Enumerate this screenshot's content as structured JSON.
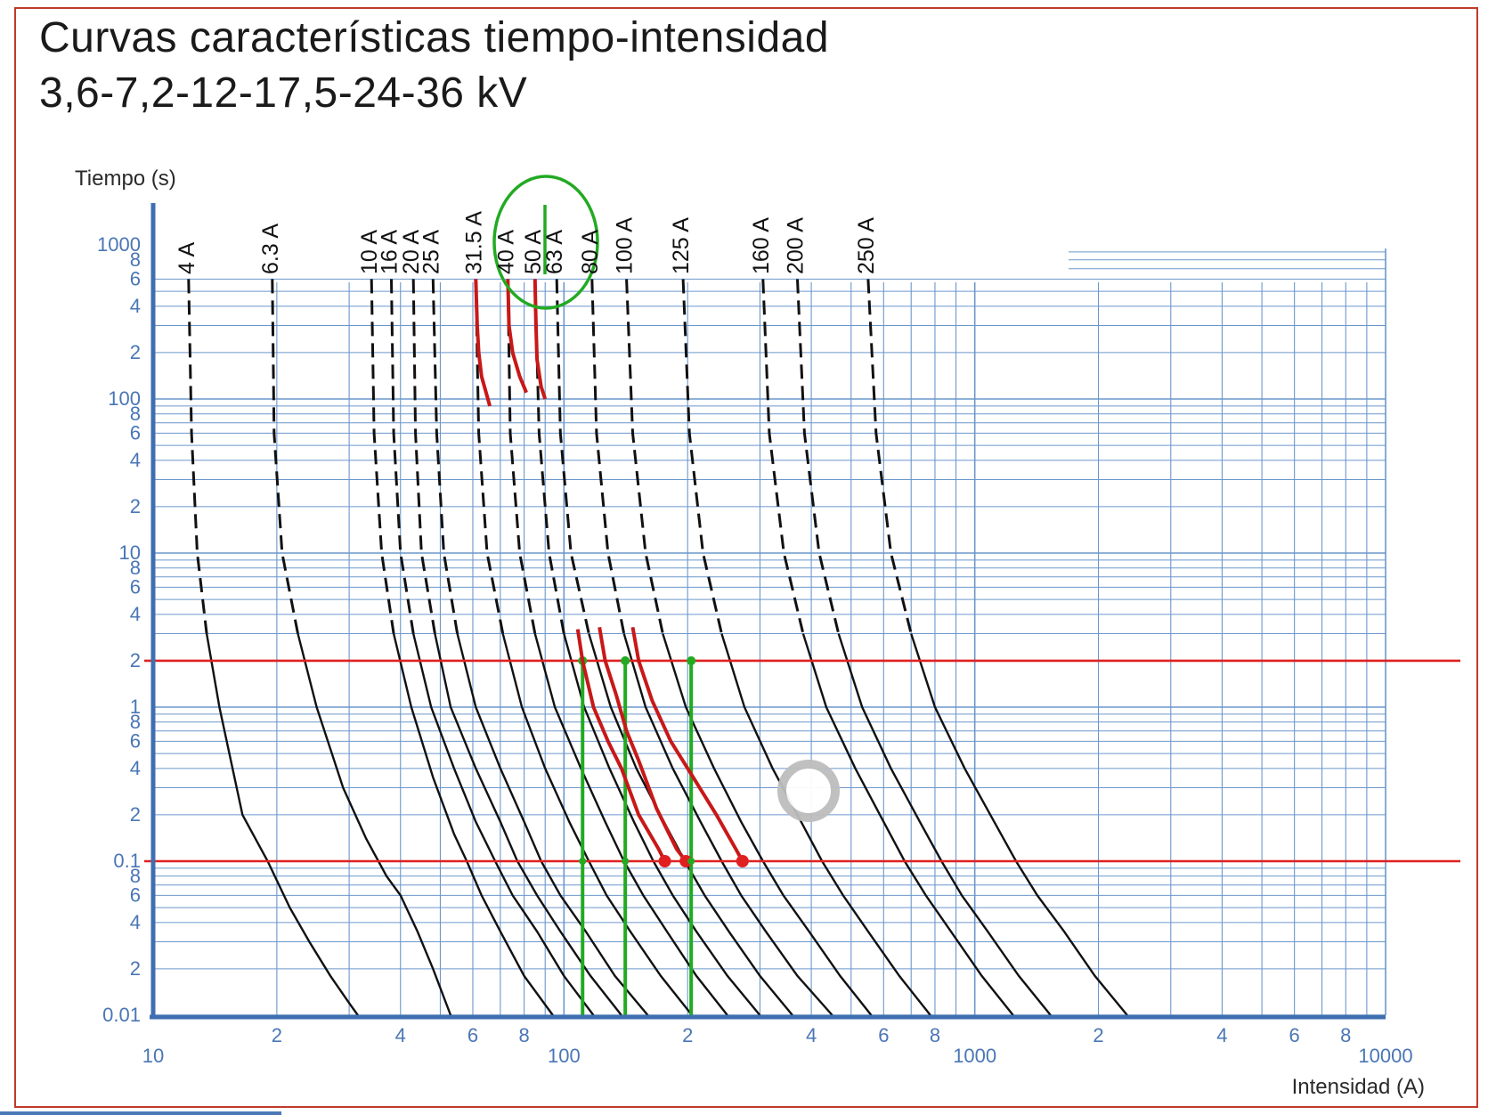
{
  "title": {
    "line1": "Curvas características tiempo-intensidad",
    "line2": "3,6-7,2-12-17,5-24-36 kV"
  },
  "chart_data": {
    "type": "line",
    "xlabel": "Intensidad (A)",
    "ylabel": "Tiempo (s)",
    "x_scale": "log",
    "y_scale": "log",
    "xlim": [
      10,
      10000
    ],
    "ylim": [
      0.01,
      600
    ],
    "grid": true,
    "x_major_ticks": [
      {
        "value": 10,
        "label": "10"
      },
      {
        "value": 100,
        "label": "100"
      },
      {
        "value": 1000,
        "label": "1000"
      },
      {
        "value": 10000,
        "label": "10000"
      }
    ],
    "x_minor_ticks": [
      {
        "value": 20,
        "label": "2"
      },
      {
        "value": 40,
        "label": "4"
      },
      {
        "value": 60,
        "label": "6"
      },
      {
        "value": 80,
        "label": "8"
      },
      {
        "value": 200,
        "label": "2"
      },
      {
        "value": 400,
        "label": "4"
      },
      {
        "value": 600,
        "label": "6"
      },
      {
        "value": 800,
        "label": "8"
      },
      {
        "value": 2000,
        "label": "2"
      },
      {
        "value": 4000,
        "label": "4"
      },
      {
        "value": 6000,
        "label": "6"
      },
      {
        "value": 8000,
        "label": "8"
      }
    ],
    "y_major_ticks": [
      {
        "value": 1000,
        "label": "1000"
      },
      {
        "value": 100,
        "label": "100"
      },
      {
        "value": 10,
        "label": "10"
      },
      {
        "value": 1,
        "label": "1"
      },
      {
        "value": 0.1,
        "label": "0.1"
      },
      {
        "value": 0.01,
        "label": "0.01"
      }
    ],
    "y_minor_ticks": [
      {
        "value": 800,
        "label": "8"
      },
      {
        "value": 600,
        "label": "6"
      },
      {
        "value": 400,
        "label": "4"
      },
      {
        "value": 200,
        "label": "2"
      },
      {
        "value": 80,
        "label": "8"
      },
      {
        "value": 60,
        "label": "6"
      },
      {
        "value": 40,
        "label": "4"
      },
      {
        "value": 20,
        "label": "2"
      },
      {
        "value": 8,
        "label": "8"
      },
      {
        "value": 6,
        "label": "6"
      },
      {
        "value": 4,
        "label": "4"
      },
      {
        "value": 2,
        "label": "2"
      },
      {
        "value": 0.8,
        "label": "8"
      },
      {
        "value": 0.6,
        "label": "6"
      },
      {
        "value": 0.4,
        "label": "4"
      },
      {
        "value": 0.2,
        "label": "2"
      },
      {
        "value": 0.08,
        "label": "8"
      },
      {
        "value": 0.06,
        "label": "6"
      },
      {
        "value": 0.04,
        "label": "4"
      },
      {
        "value": 0.02,
        "label": "2"
      }
    ],
    "series": [
      {
        "name": "4 A",
        "points": [
          [
            12.2,
            600
          ],
          [
            12.4,
            60
          ],
          [
            12.8,
            10
          ],
          [
            13.5,
            3
          ],
          [
            14.5,
            1
          ],
          [
            16.5,
            0.2
          ],
          [
            19,
            0.1
          ],
          [
            21.5,
            0.05
          ],
          [
            24,
            0.03
          ],
          [
            27,
            0.018
          ],
          [
            30,
            0.012
          ],
          [
            31.5,
            0.01
          ]
        ]
      },
      {
        "name": "6.3 A",
        "points": [
          [
            19.5,
            600
          ],
          [
            19.7,
            60
          ],
          [
            20.6,
            10
          ],
          [
            22.5,
            3
          ],
          [
            25,
            1
          ],
          [
            29,
            0.3
          ],
          [
            33,
            0.14
          ],
          [
            37,
            0.08
          ],
          [
            40,
            0.06
          ],
          [
            44,
            0.035
          ],
          [
            48,
            0.02
          ],
          [
            53,
            0.01
          ]
        ]
      },
      {
        "name": "10 A",
        "points": [
          [
            34,
            600
          ],
          [
            34.5,
            60
          ],
          [
            36,
            10
          ],
          [
            38.5,
            3
          ],
          [
            42.5,
            1
          ],
          [
            48,
            0.35
          ],
          [
            54,
            0.15
          ],
          [
            58,
            0.1
          ],
          [
            63,
            0.06
          ],
          [
            70,
            0.035
          ],
          [
            80,
            0.018
          ],
          [
            94,
            0.01
          ]
        ]
      },
      {
        "name": "16 A",
        "points": [
          [
            38,
            600
          ],
          [
            38.5,
            60
          ],
          [
            40,
            10
          ],
          [
            43,
            3
          ],
          [
            47.5,
            1
          ],
          [
            54,
            0.4
          ],
          [
            61,
            0.18
          ],
          [
            68,
            0.1
          ],
          [
            75,
            0.06
          ],
          [
            86,
            0.035
          ],
          [
            100,
            0.018
          ],
          [
            118,
            0.01
          ]
        ]
      },
      {
        "name": "20 A",
        "points": [
          [
            43,
            600
          ],
          [
            43.5,
            60
          ],
          [
            45,
            10
          ],
          [
            48.5,
            3
          ],
          [
            53,
            1
          ],
          [
            61,
            0.4
          ],
          [
            70,
            0.18
          ],
          [
            77,
            0.1
          ],
          [
            86,
            0.06
          ],
          [
            98,
            0.035
          ],
          [
            116,
            0.018
          ],
          [
            138,
            0.01
          ]
        ]
      },
      {
        "name": "25 A",
        "points": [
          [
            48,
            600
          ],
          [
            49,
            60
          ],
          [
            51,
            10
          ],
          [
            55,
            3
          ],
          [
            61,
            1
          ],
          [
            70,
            0.4
          ],
          [
            80,
            0.18
          ],
          [
            88,
            0.1
          ],
          [
            98,
            0.06
          ],
          [
            113,
            0.035
          ],
          [
            133,
            0.018
          ],
          [
            160,
            0.01
          ]
        ]
      },
      {
        "name": "31.5 A",
        "points": [
          [
            61,
            600
          ],
          [
            62,
            60
          ],
          [
            65,
            10
          ],
          [
            71,
            3
          ],
          [
            79,
            1
          ],
          [
            90,
            0.4
          ],
          [
            103,
            0.18
          ],
          [
            115,
            0.1
          ],
          [
            127,
            0.06
          ],
          [
            145,
            0.035
          ],
          [
            172,
            0.018
          ],
          [
            205,
            0.01
          ]
        ]
      },
      {
        "name": "40 A",
        "points": [
          [
            73,
            600
          ],
          [
            74,
            60
          ],
          [
            78,
            10
          ],
          [
            85,
            3
          ],
          [
            95,
            1
          ],
          [
            110,
            0.4
          ],
          [
            126,
            0.18
          ],
          [
            140,
            0.1
          ],
          [
            156,
            0.06
          ],
          [
            178,
            0.035
          ],
          [
            210,
            0.018
          ],
          [
            250,
            0.01
          ]
        ]
      },
      {
        "name": "50 A",
        "points": [
          [
            85,
            600
          ],
          [
            87,
            60
          ],
          [
            92,
            10
          ],
          [
            100,
            3
          ],
          [
            112,
            1
          ],
          [
            129,
            0.4
          ],
          [
            148,
            0.18
          ],
          [
            165,
            0.1
          ],
          [
            184,
            0.06
          ],
          [
            210,
            0.035
          ],
          [
            250,
            0.018
          ],
          [
            300,
            0.01
          ]
        ]
      },
      {
        "name": "63 A",
        "points": [
          [
            96,
            600
          ],
          [
            98,
            60
          ],
          [
            104,
            10
          ],
          [
            115,
            3
          ],
          [
            130,
            1
          ],
          [
            150,
            0.4
          ],
          [
            175,
            0.18
          ],
          [
            197,
            0.1
          ],
          [
            220,
            0.06
          ],
          [
            252,
            0.035
          ],
          [
            300,
            0.018
          ],
          [
            360,
            0.01
          ]
        ]
      },
      {
        "name": "80 A",
        "points": [
          [
            117,
            600
          ],
          [
            120,
            60
          ],
          [
            128,
            10
          ],
          [
            140,
            3
          ],
          [
            158,
            1
          ],
          [
            184,
            0.4
          ],
          [
            215,
            0.18
          ],
          [
            242,
            0.1
          ],
          [
            270,
            0.06
          ],
          [
            310,
            0.035
          ],
          [
            370,
            0.018
          ],
          [
            450,
            0.01
          ]
        ]
      },
      {
        "name": "100 A",
        "points": [
          [
            142,
            600
          ],
          [
            147,
            60
          ],
          [
            158,
            10
          ],
          [
            174,
            3
          ],
          [
            198,
            1
          ],
          [
            232,
            0.4
          ],
          [
            270,
            0.18
          ],
          [
            305,
            0.1
          ],
          [
            342,
            0.06
          ],
          [
            395,
            0.035
          ],
          [
            470,
            0.018
          ],
          [
            560,
            0.01
          ]
        ]
      },
      {
        "name": "125 A",
        "points": [
          [
            195,
            600
          ],
          [
            202,
            60
          ],
          [
            218,
            10
          ],
          [
            242,
            3
          ],
          [
            275,
            1
          ],
          [
            322,
            0.4
          ],
          [
            378,
            0.18
          ],
          [
            425,
            0.1
          ],
          [
            478,
            0.06
          ],
          [
            550,
            0.035
          ],
          [
            655,
            0.018
          ],
          [
            780,
            0.01
          ]
        ]
      },
      {
        "name": "160 A",
        "points": [
          [
            305,
            600
          ],
          [
            316,
            60
          ],
          [
            343,
            10
          ],
          [
            382,
            3
          ],
          [
            435,
            1
          ],
          [
            512,
            0.4
          ],
          [
            600,
            0.18
          ],
          [
            675,
            0.1
          ],
          [
            760,
            0.06
          ],
          [
            875,
            0.035
          ],
          [
            1040,
            0.018
          ],
          [
            1240,
            0.01
          ]
        ]
      },
      {
        "name": "200 A",
        "points": [
          [
            370,
            600
          ],
          [
            385,
            60
          ],
          [
            418,
            10
          ],
          [
            466,
            3
          ],
          [
            532,
            1
          ],
          [
            625,
            0.4
          ],
          [
            735,
            0.18
          ],
          [
            830,
            0.1
          ],
          [
            930,
            0.06
          ],
          [
            1075,
            0.035
          ],
          [
            1280,
            0.018
          ],
          [
            1530,
            0.01
          ]
        ]
      },
      {
        "name": "250 A",
        "points": [
          [
            550,
            600
          ],
          [
            575,
            60
          ],
          [
            625,
            10
          ],
          [
            700,
            3
          ],
          [
            800,
            1
          ],
          [
            945,
            0.4
          ],
          [
            1115,
            0.18
          ],
          [
            1260,
            0.1
          ],
          [
            1420,
            0.06
          ],
          [
            1650,
            0.035
          ],
          [
            1960,
            0.018
          ],
          [
            2350,
            0.01
          ]
        ]
      }
    ],
    "markup": {
      "reference_lines_time_s": [
        2,
        0.1
      ],
      "reference_points_current_a": [
        111,
        141,
        204
      ],
      "highlighted_series": [
        "31.5 A"
      ]
    },
    "colors": {
      "grid": "#6b97cc",
      "axis": "#3f6fb0",
      "tick_text": "#4a76b5",
      "curve": "#111111",
      "markup_red": "#e02020",
      "markup_green": "#22aa22",
      "frame": "#c0392b"
    }
  }
}
